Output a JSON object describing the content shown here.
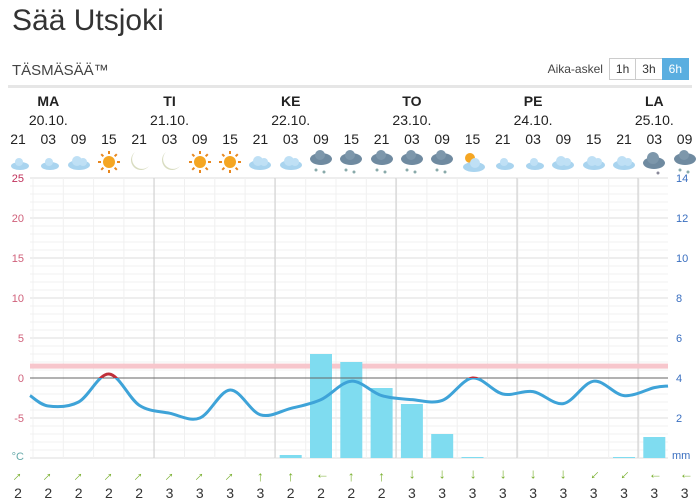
{
  "title": "Sää Utsjoki",
  "subtitle": "TÄSMÄSÄÄ™",
  "time_step": {
    "label": "Aika-askel",
    "options": [
      "1h",
      "3h",
      "6h"
    ],
    "selected": "6h"
  },
  "days": [
    {
      "name": "MA",
      "date": "20.10."
    },
    {
      "name": "TI",
      "date": "21.10."
    },
    {
      "name": "KE",
      "date": "22.10."
    },
    {
      "name": "TO",
      "date": "23.10."
    },
    {
      "name": "PE",
      "date": "24.10."
    },
    {
      "name": "LA",
      "date": "25.10."
    }
  ],
  "slots": [
    {
      "hour": "21",
      "icon": "moon-cloud",
      "wind_dir": "NE",
      "wind": "2"
    },
    {
      "hour": "03",
      "icon": "moon-cloud",
      "wind_dir": "NE",
      "wind": "2"
    },
    {
      "hour": "09",
      "icon": "cloud",
      "wind_dir": "NE",
      "wind": "2"
    },
    {
      "hour": "15",
      "icon": "sun",
      "wind_dir": "NE",
      "wind": "2"
    },
    {
      "hour": "21",
      "icon": "moon",
      "wind_dir": "NE",
      "wind": "2"
    },
    {
      "hour": "03",
      "icon": "moon",
      "wind_dir": "NE",
      "wind": "3"
    },
    {
      "hour": "09",
      "icon": "sun",
      "wind_dir": "NE",
      "wind": "3"
    },
    {
      "hour": "15",
      "icon": "sun",
      "wind_dir": "NE",
      "wind": "3"
    },
    {
      "hour": "21",
      "icon": "cloud",
      "wind_dir": "N",
      "wind": "3"
    },
    {
      "hour": "03",
      "icon": "cloud",
      "wind_dir": "N",
      "wind": "2"
    },
    {
      "hour": "09",
      "icon": "snow",
      "wind_dir": "W",
      "wind": "2"
    },
    {
      "hour": "15",
      "icon": "snow",
      "wind_dir": "N",
      "wind": "2"
    },
    {
      "hour": "21",
      "icon": "snow",
      "wind_dir": "N",
      "wind": "2"
    },
    {
      "hour": "03",
      "icon": "snow",
      "wind_dir": "S",
      "wind": "3"
    },
    {
      "hour": "09",
      "icon": "snow",
      "wind_dir": "S",
      "wind": "3"
    },
    {
      "hour": "15",
      "icon": "sun-cloud",
      "wind_dir": "S",
      "wind": "3"
    },
    {
      "hour": "21",
      "icon": "moon-cloud",
      "wind_dir": "S",
      "wind": "3"
    },
    {
      "hour": "03",
      "icon": "moon-cloud",
      "wind_dir": "S",
      "wind": "3"
    },
    {
      "hour": "09",
      "icon": "cloud",
      "wind_dir": "S",
      "wind": "3"
    },
    {
      "hour": "15",
      "icon": "cloud",
      "wind_dir": "SW",
      "wind": "3"
    },
    {
      "hour": "21",
      "icon": "cloud",
      "wind_dir": "SW",
      "wind": "3"
    },
    {
      "hour": "03",
      "icon": "dark-cloud",
      "wind_dir": "W",
      "wind": "3"
    },
    {
      "hour": "09",
      "icon": "snow",
      "wind_dir": "W",
      "wind": "3"
    }
  ],
  "chart_data": {
    "type": "line",
    "temp_axis": {
      "ticks": [
        "25",
        "20",
        "15",
        "10",
        "5",
        "0",
        "-5"
      ],
      "unit": "°C",
      "range": [
        -10,
        25
      ]
    },
    "precip_axis": {
      "ticks": [
        "14",
        "12",
        "10",
        "8",
        "6",
        "4",
        "2"
      ],
      "unit": "mm",
      "range": [
        0,
        14
      ]
    },
    "temperature": [
      -2.2,
      -3.5,
      -3.0,
      0.5,
      -3.4,
      -4.4,
      -5.0,
      -1.5,
      -4.6,
      -3.8,
      -2.7,
      -0.4,
      -2.2,
      -2.7,
      -2.8,
      0.0,
      -2.0,
      -1.7,
      -3.2,
      -0.4,
      -2.2,
      -1.2,
      -1.0
    ],
    "precipitation": [
      0,
      0,
      0,
      0,
      0,
      0,
      0,
      0,
      0,
      0.15,
      5.2,
      4.8,
      3.5,
      2.7,
      1.2,
      0.05,
      0,
      0,
      0,
      0,
      0.05,
      1.05,
      0
    ],
    "colors": {
      "temp_line": "#3ea3d8",
      "temp_above_zero": "#c0303a",
      "precip": "#7fdcf0",
      "warm_band": "#f7c6cc"
    }
  }
}
